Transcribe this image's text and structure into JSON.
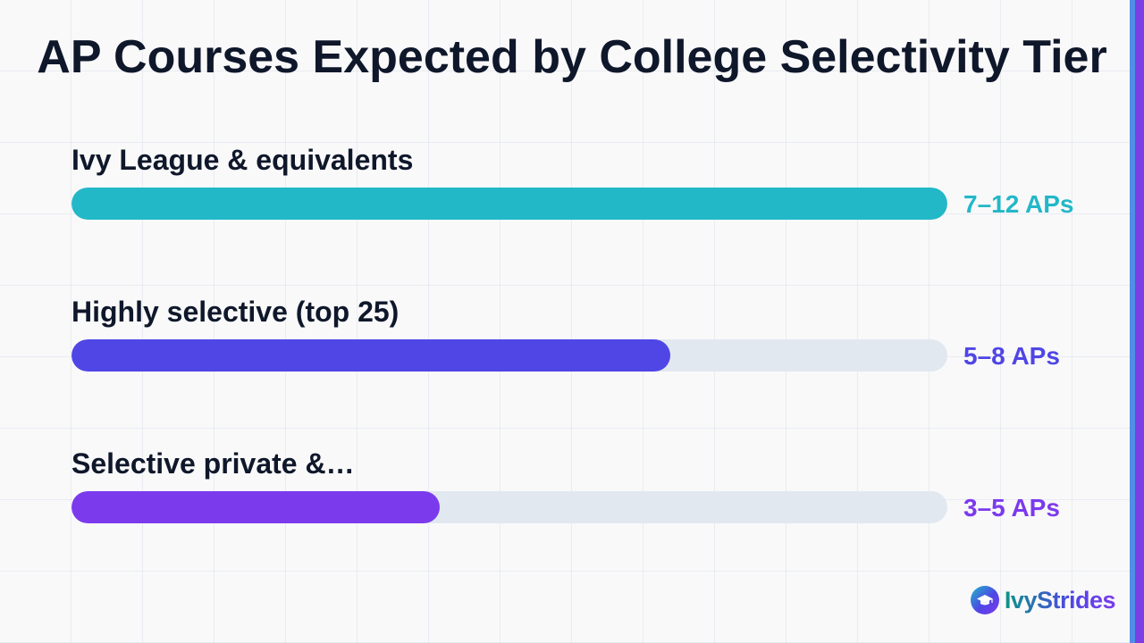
{
  "chart_data": {
    "type": "bar",
    "orientation": "horizontal",
    "title": "AP Courses Expected by College Selectivity Tier",
    "categories": [
      "Ivy League & equivalents",
      "Highly selective (top 25)",
      "Selective private &…"
    ],
    "value_labels": [
      "7–12 APs",
      "5–8 APs",
      "3–5 APs"
    ],
    "values": [
      12,
      8.2,
      5.05
    ],
    "xlim": [
      0,
      12
    ],
    "colors": [
      "#22b8c8",
      "#4f46e5",
      "#7c3aed"
    ],
    "track_color": "#e2e8f0",
    "grid": false,
    "legend": "none"
  },
  "brand": {
    "name": "IvyStrides",
    "icon": "graduation-cap-icon"
  }
}
